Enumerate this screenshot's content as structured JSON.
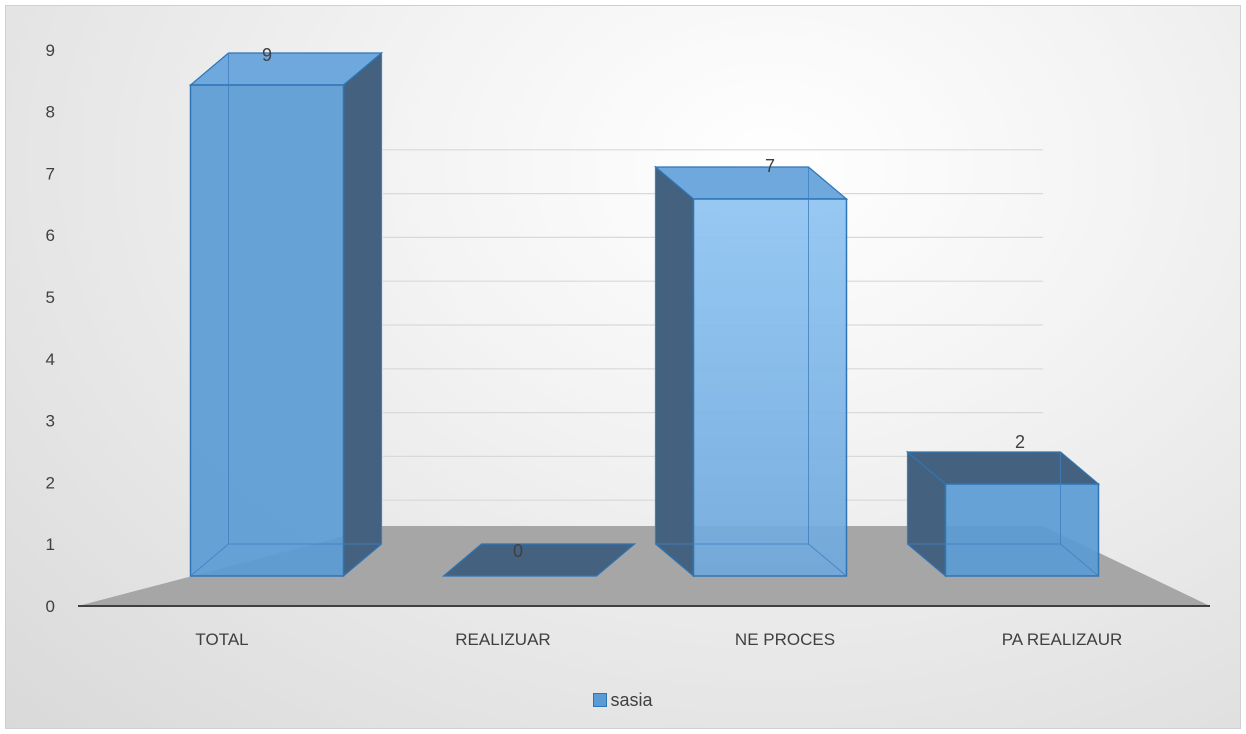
{
  "chart_data": {
    "type": "bar",
    "style": "3d-column",
    "categories": [
      "TOTAL",
      "REALIZUAR",
      "NE PROCES",
      "PA REALIZAUR"
    ],
    "series": [
      {
        "name": "sasia",
        "values": [
          9,
          0,
          7,
          2
        ],
        "color": "#5b9bd5"
      }
    ],
    "data_labels": [
      "9",
      "0",
      "7",
      "2"
    ],
    "yticks": [
      "0",
      "1",
      "2",
      "3",
      "4",
      "5",
      "6",
      "7",
      "8",
      "9"
    ],
    "ylim": [
      0,
      9
    ],
    "grid": true,
    "legend_position": "bottom",
    "colors": {
      "front": "#5b9bd5",
      "side": "#44627f",
      "floor": "#a6a6a6",
      "grid": "#d9d9d9"
    }
  }
}
